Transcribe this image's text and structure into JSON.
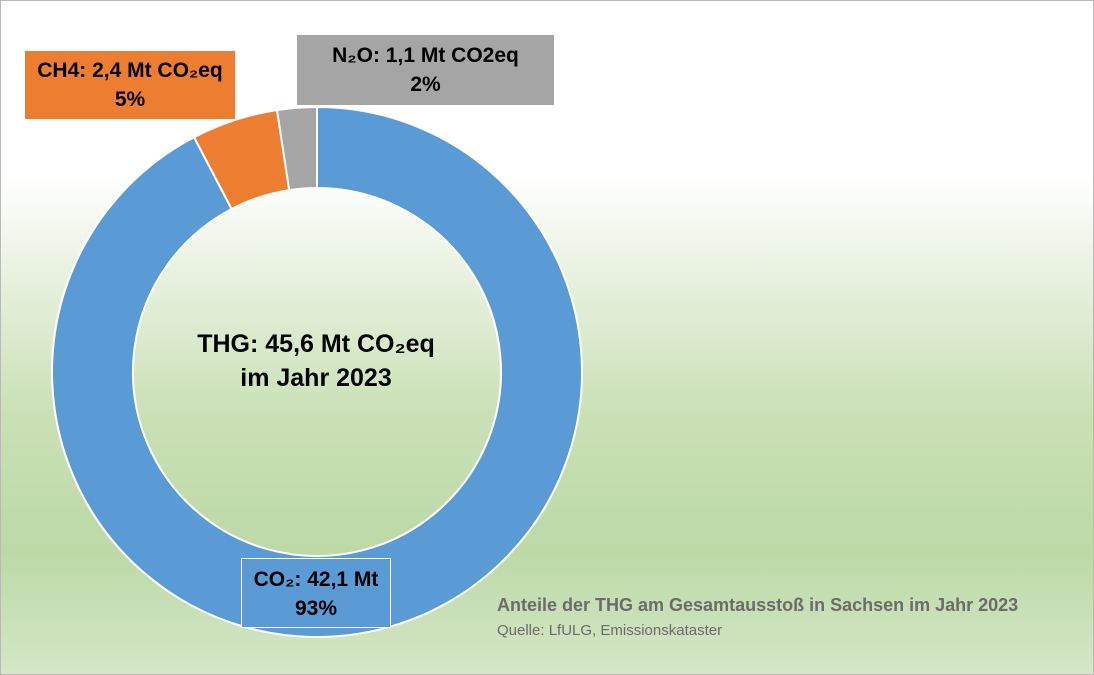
{
  "chart_data": {
    "type": "pie",
    "variant": "donut",
    "center_text": [
      "THG: 45,6 Mt CO₂eq",
      "im Jahr 2023"
    ],
    "slices": [
      {
        "label": "CO₂: 42,1 Mt",
        "percent_label": "93%",
        "value": 42.1,
        "color": "#5b9bd5"
      },
      {
        "label": "CH4: 2,4 Mt CO₂eq",
        "percent_label": "5%",
        "value": 2.4,
        "color": "#ed7d31"
      },
      {
        "label": "N₂O: 1,1 Mt CO2eq",
        "percent_label": "2%",
        "value": 1.1,
        "color": "#a5a5a5"
      }
    ],
    "title": "Anteile der THG am Gesamtausstoß in Sachsen im Jahr 2023",
    "source": "Quelle: LfULG, Emissionskataster"
  }
}
